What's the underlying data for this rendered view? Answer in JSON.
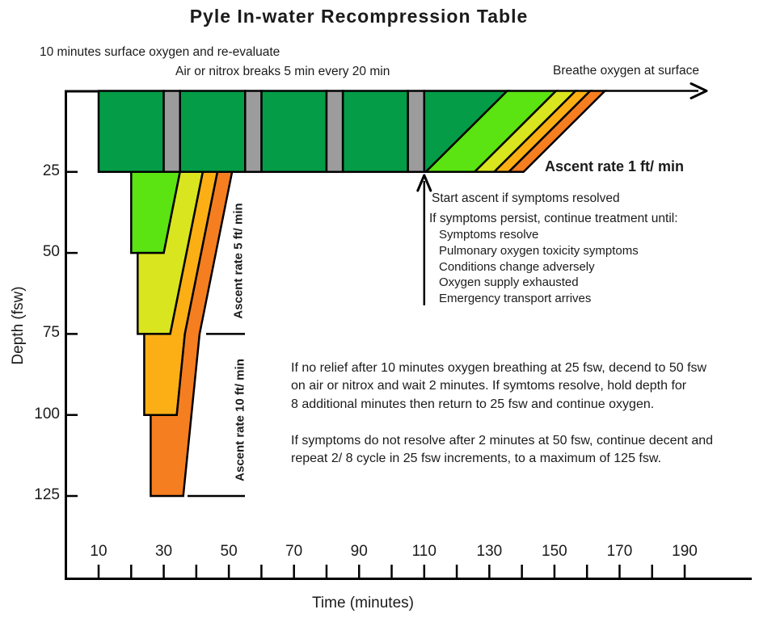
{
  "title": "Pyle In-water Recompression Table",
  "notes": {
    "surface_oxygen": "10 minutes surface oxygen and re-evaluate",
    "air_breaks": "Air or nitrox breaks 5 min every 20 min",
    "breathe_surface": "Breathe oxygen at surface",
    "ascent_rate_surface": "Ascent rate 1 ft/ min",
    "ascent_rate_shallow": "Ascent rate 5 ft/ min",
    "ascent_rate_deep": "Ascent rate 10 ft/ min",
    "start_ascent": "Start ascent if symptoms resolved",
    "persist_header": "If symptoms persist, continue treatment until:",
    "persist_items": [
      "Symptoms resolve",
      "Pulmonary oxygen toxicity symptoms",
      "Conditions change adversely",
      "Oxygen supply exhausted",
      "Emergency transport arrives"
    ],
    "paragraph1": "If no relief after 10 minutes oxygen breathing at 25 fsw, decend to 50 fsw\non air or nitrox and wait 2 minutes. If symtoms resolve, hold depth for\n8 additional minutes then return to 25 fsw and continue oxygen.",
    "paragraph2": "If symptoms do not resolve after 2 minutes at 50 fsw, continue decent and\nrepeat 2/ 8 cycle in 25 fsw increments, to a maximum of 125 fsw."
  },
  "chart_data": {
    "type": "area",
    "title": "Pyle In-water Recompression Table",
    "xlabel": "Time (minutes)",
    "ylabel": "Depth (fsw)",
    "x_ticks_labeled": [
      10,
      30,
      50,
      70,
      90,
      110,
      130,
      150,
      170,
      190
    ],
    "x_tick_step": 10,
    "x_range": [
      10,
      190
    ],
    "y_ticks": [
      25,
      50,
      75,
      100,
      125
    ],
    "y_range_fsw": [
      0,
      125
    ],
    "grid": false,
    "colors": {
      "oxygen": "#049c47",
      "excursion_50": "#5be312",
      "excursion_75": "#d9e51f",
      "excursion_100": "#fbaf15",
      "excursion_125": "#f57e20",
      "air_break": "#9c9c9c"
    },
    "oxygen_bar": {
      "depth_fsw": 25,
      "oxygen_periods_min": [
        [
          10,
          30
        ],
        [
          35,
          55
        ],
        [
          60,
          80
        ],
        [
          85,
          105
        ]
      ],
      "air_breaks_min": [
        [
          30,
          35
        ],
        [
          55,
          60
        ],
        [
          80,
          85
        ],
        [
          105,
          110
        ]
      ],
      "final_oxygen_polygon_time_depth": [
        [
          110,
          0
        ],
        [
          135.5,
          0
        ],
        [
          110.5,
          25
        ],
        [
          110,
          25
        ]
      ],
      "ascent_start_min": 110,
      "ascent_rate": "1 ft/min"
    },
    "surface_ascent_bands": {
      "ascent_duration_min": 25,
      "bands": [
        {
          "color": "excursion_50",
          "cross_25fsw_min": [
            110.5,
            125.5
          ]
        },
        {
          "color": "excursion_75",
          "cross_25fsw_min": [
            125.5,
            131.5
          ]
        },
        {
          "color": "excursion_100",
          "cross_25fsw_min": [
            131.5,
            136
          ]
        },
        {
          "color": "excursion_125",
          "cross_25fsw_min": [
            136,
            140.5
          ]
        }
      ]
    },
    "excursions": [
      {
        "depth_fsw": 50,
        "color": "excursion_50",
        "ascent_rate": "5 ft/min",
        "polygon_time_depth": [
          [
            20,
            25
          ],
          [
            35,
            25
          ],
          [
            30,
            50
          ],
          [
            20,
            50
          ]
        ]
      },
      {
        "depth_fsw": 75,
        "color": "excursion_75",
        "ascent_rate": "5 ft/min",
        "polygon_time_depth": [
          [
            35,
            25
          ],
          [
            42,
            25
          ],
          [
            32,
            75
          ],
          [
            22,
            75
          ],
          [
            22,
            50
          ],
          [
            30,
            50
          ]
        ]
      },
      {
        "depth_fsw": 100,
        "color": "excursion_100",
        "ascent_rate": "10 ft/min below 75 fsw",
        "polygon_time_depth": [
          [
            42,
            25
          ],
          [
            46.5,
            25
          ],
          [
            36.5,
            75
          ],
          [
            34,
            100
          ],
          [
            24,
            100
          ],
          [
            24,
            75
          ],
          [
            32,
            75
          ]
        ]
      },
      {
        "depth_fsw": 125,
        "color": "excursion_125",
        "ascent_rate": "10 ft/min below 75 fsw",
        "polygon_time_depth": [
          [
            46.5,
            25
          ],
          [
            51,
            25
          ],
          [
            41,
            75
          ],
          [
            38.5,
            100
          ],
          [
            36,
            125
          ],
          [
            26,
            125
          ],
          [
            26,
            100
          ],
          [
            34,
            100
          ],
          [
            36.5,
            75
          ]
        ]
      }
    ]
  }
}
